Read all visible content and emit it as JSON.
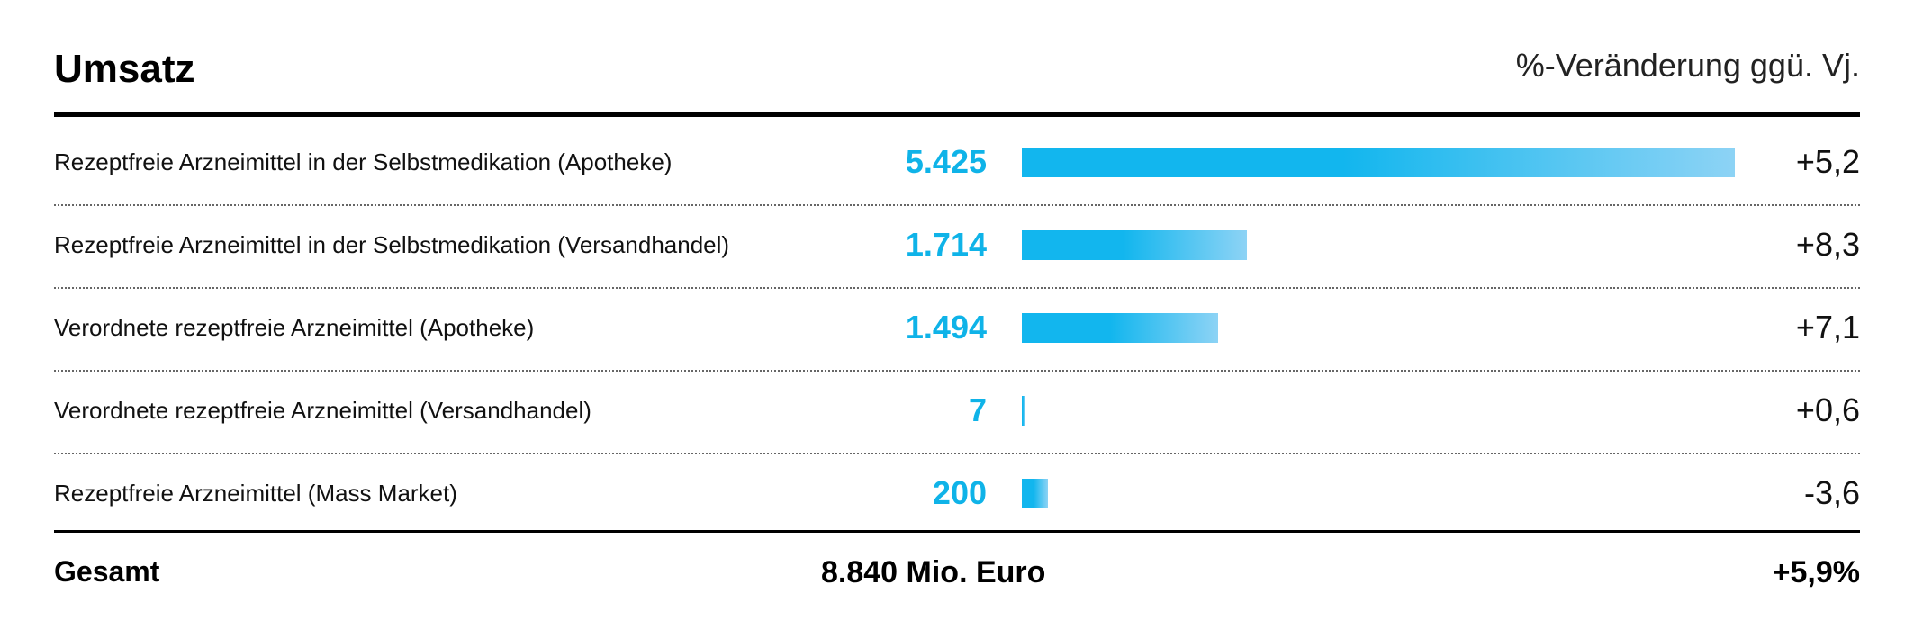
{
  "header": {
    "title": "Umsatz",
    "subtitle": "%-Veränderung ggü. Vj."
  },
  "chart_data": {
    "type": "bar",
    "orientation": "horizontal",
    "categories": [
      "Rezeptfreie Arzneimittel in der Selbstmedikation (Apotheke)",
      "Rezeptfreie Arzneimittel in der Selbstmedikation (Versandhandel)",
      "Verordnete rezeptfreie Arzneimittel (Apotheke)",
      "Verordnete rezeptfreie Arzneimittel (Versandhandel)",
      "Rezeptfreie Arzneimittel (Mass Market)"
    ],
    "values": [
      5425,
      1714,
      1494,
      7,
      200
    ],
    "value_labels": [
      "5.425",
      "1.714",
      "1.494",
      "7",
      "200"
    ],
    "changes": [
      "+5,2",
      "+8,3",
      "+7,1",
      "+0,6",
      "-3,6"
    ],
    "colors": {
      "bar_start": "#12b6ee",
      "bar_end": "#8dd3f5",
      "value_text": "#0fb3e8"
    }
  },
  "total": {
    "label": "Gesamt",
    "value": "8.840 Mio. Euro",
    "change": "+5,9%"
  }
}
